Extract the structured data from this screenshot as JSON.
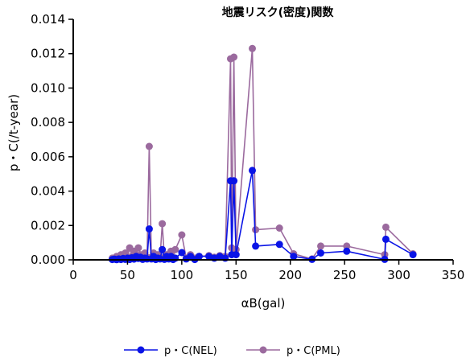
{
  "chart_data": {
    "type": "line",
    "title": "地震リスク(密度)関数",
    "xlabel": "αB(gal)",
    "ylabel": "p・C(/t-year)",
    "xlim": [
      0,
      350
    ],
    "ylim": [
      0,
      0.014
    ],
    "x_ticks": [
      0,
      50,
      100,
      150,
      200,
      250,
      300,
      350
    ],
    "y_ticks": [
      0,
      0.002,
      0.004,
      0.006,
      0.008,
      0.01,
      0.012,
      0.014
    ],
    "x_tick_labels": [
      "0",
      "50",
      "100",
      "150",
      "200",
      "250",
      "300",
      "350"
    ],
    "y_tick_labels": [
      "0.000",
      "0.002",
      "0.004",
      "0.006",
      "0.008",
      "0.010",
      "0.012",
      "0.014"
    ],
    "grid": false,
    "legend_position": "bottom",
    "series": [
      {
        "name": "p・C(NEL)",
        "color": "#0a14e6",
        "points": [
          [
            36,
            2e-05
          ],
          [
            38,
            4e-05
          ],
          [
            40,
            1e-05
          ],
          [
            42,
            5e-05
          ],
          [
            44,
            2e-05
          ],
          [
            46,
            8e-05
          ],
          [
            48,
            3e-05
          ],
          [
            50,
            0.0001
          ],
          [
            52,
            2e-05
          ],
          [
            54,
            0.00012
          ],
          [
            56,
            4e-05
          ],
          [
            58,
            0.0002
          ],
          [
            60,
            8e-05
          ],
          [
            62,
            0.00015
          ],
          [
            64,
            3e-05
          ],
          [
            66,
            0.0001
          ],
          [
            68,
            5e-05
          ],
          [
            70,
            0.0018
          ],
          [
            72,
            5e-05
          ],
          [
            74,
            0.0002
          ],
          [
            76,
            2e-05
          ],
          [
            78,
            0.0001
          ],
          [
            80,
            5e-05
          ],
          [
            82,
            0.0006
          ],
          [
            84,
            3e-05
          ],
          [
            86,
            0.0002
          ],
          [
            88,
            5e-05
          ],
          [
            90,
            0.0002
          ],
          [
            92,
            2e-05
          ],
          [
            94,
            0.0001
          ],
          [
            100,
            0.00042
          ],
          [
            104,
            5e-05
          ],
          [
            108,
            0.0002
          ],
          [
            112,
            2e-05
          ],
          [
            116,
            0.0002
          ],
          [
            125,
            0.0002
          ],
          [
            130,
            0.0001
          ],
          [
            135,
            0.0002
          ],
          [
            140,
            0.0001
          ],
          [
            145,
            0.0046
          ],
          [
            146,
            0.0003
          ],
          [
            148,
            0.0046
          ],
          [
            150,
            0.0003
          ],
          [
            165,
            0.0052
          ],
          [
            168,
            0.0008
          ],
          [
            190,
            0.0009
          ],
          [
            203,
            0.0002
          ],
          [
            220,
            3e-05
          ],
          [
            228,
            0.0004
          ],
          [
            252,
            0.0005
          ],
          [
            287,
            3e-05
          ],
          [
            288,
            0.0012
          ],
          [
            313,
            0.0003
          ]
        ]
      },
      {
        "name": "p・C(PML)",
        "color": "#9b6a9e",
        "points": [
          [
            36,
            0.0001
          ],
          [
            38,
            5e-05
          ],
          [
            40,
            0.0002
          ],
          [
            42,
            8e-05
          ],
          [
            44,
            0.0003
          ],
          [
            46,
            0.0001
          ],
          [
            48,
            0.0004
          ],
          [
            50,
            0.00015
          ],
          [
            52,
            0.0007
          ],
          [
            54,
            0.0002
          ],
          [
            56,
            0.0005
          ],
          [
            58,
            0.0002
          ],
          [
            60,
            0.0007
          ],
          [
            62,
            0.0003
          ],
          [
            64,
            0.0002
          ],
          [
            66,
            0.0004
          ],
          [
            68,
            0.00015
          ],
          [
            70,
            0.0066
          ],
          [
            72,
            0.00015
          ],
          [
            74,
            0.0004
          ],
          [
            76,
            0.0001
          ],
          [
            78,
            0.0003
          ],
          [
            80,
            0.00015
          ],
          [
            82,
            0.0021
          ],
          [
            84,
            0.0001
          ],
          [
            86,
            0.0003
          ],
          [
            88,
            0.0001
          ],
          [
            90,
            0.0005
          ],
          [
            92,
            0.0001
          ],
          [
            94,
            0.0006
          ],
          [
            100,
            0.00145
          ],
          [
            104,
            0.0001
          ],
          [
            108,
            0.0003
          ],
          [
            112,
            0.0001
          ],
          [
            116,
            0.0002
          ],
          [
            125,
            0.00025
          ],
          [
            130,
            0.00015
          ],
          [
            135,
            0.00025
          ],
          [
            140,
            0.0002
          ],
          [
            145,
            0.0117
          ],
          [
            146,
            0.0007
          ],
          [
            148,
            0.0118
          ],
          [
            150,
            0.0006
          ],
          [
            165,
            0.0123
          ],
          [
            168,
            0.00175
          ],
          [
            190,
            0.00185
          ],
          [
            203,
            0.00035
          ],
          [
            220,
            5e-05
          ],
          [
            228,
            0.0008
          ],
          [
            252,
            0.0008
          ],
          [
            287,
            0.0003
          ],
          [
            288,
            0.0019
          ],
          [
            313,
            0.00035
          ]
        ]
      }
    ]
  }
}
